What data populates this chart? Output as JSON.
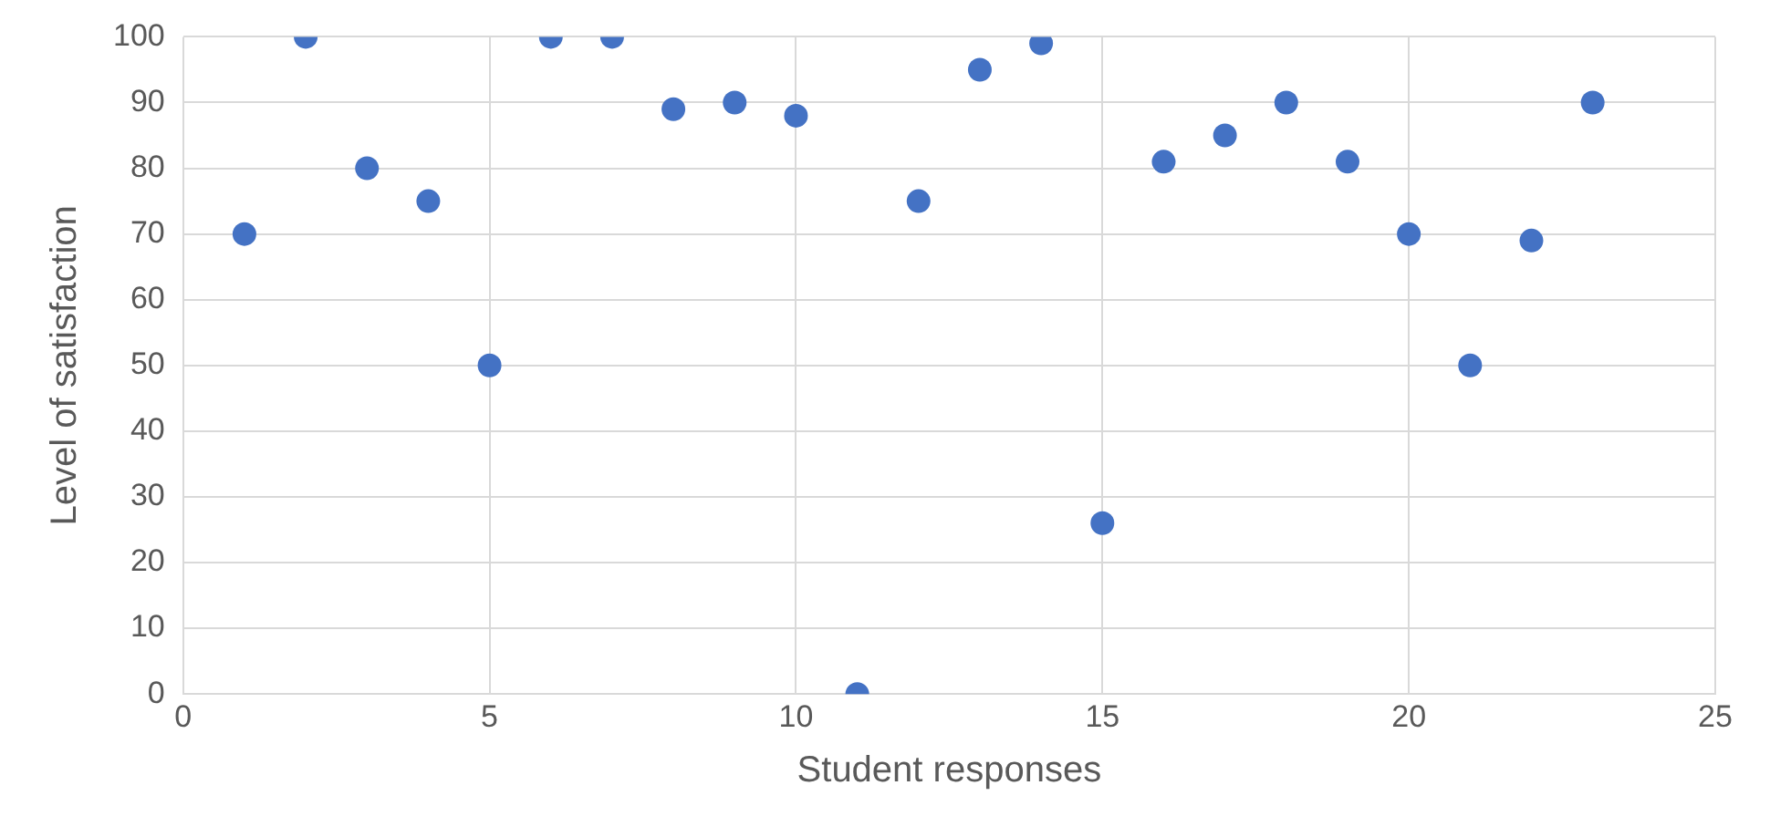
{
  "chart_data": {
    "type": "scatter",
    "xlabel": "Student responses",
    "ylabel": "Level of satisfaction",
    "x": [
      1,
      2,
      3,
      4,
      5,
      6,
      7,
      8,
      9,
      10,
      11,
      12,
      13,
      14,
      15,
      16,
      17,
      18,
      19,
      20,
      21,
      22,
      23
    ],
    "values": [
      70,
      100,
      80,
      75,
      50,
      100,
      100,
      89,
      90,
      88,
      0,
      75,
      95,
      99,
      26,
      81,
      85,
      90,
      81,
      70,
      50,
      69,
      90
    ],
    "color": "#4472c4",
    "marker": "circle",
    "xlim": [
      0,
      25
    ],
    "xticks": [
      0,
      5,
      10,
      15,
      20,
      25
    ],
    "ylim": [
      0,
      100
    ],
    "yticks": [
      0,
      10,
      20,
      30,
      40,
      50,
      60,
      70,
      80,
      90,
      100
    ],
    "grid": true
  }
}
